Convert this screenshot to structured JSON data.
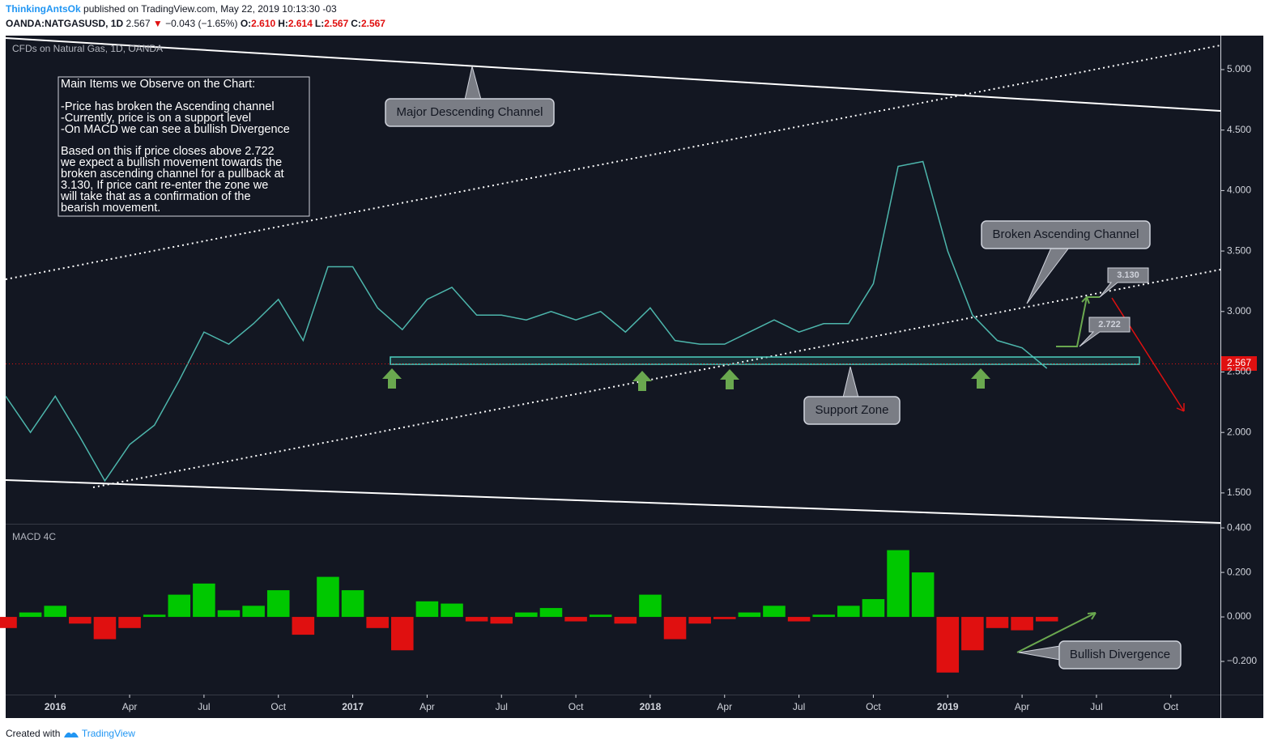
{
  "header": {
    "author": "ThinkingAntsOk",
    "published": "published on TradingView.com, May 22, 2019 10:13:30 -03",
    "symbol": "OANDA:NATGASUSD, 1D",
    "last": "2.567",
    "change": "−0.043 (−1.65%)",
    "ohlc": [
      {
        "label": "O:",
        "value": "2.610"
      },
      {
        "label": "H:",
        "value": "2.614"
      },
      {
        "label": "L:",
        "value": "2.567"
      },
      {
        "label": "C:",
        "value": "2.567"
      }
    ]
  },
  "note": {
    "heading": "Main Items we Observe on the Chart:",
    "items": [
      "-Price has broken the Ascending channel",
      "-Currently, price is on a support level",
      "-On MACD we can see a bullish Divergence"
    ],
    "paragraph": [
      "Based on this if price closes above 2.722",
      "we expect a bullish movement towards the",
      "broken ascending channel for a pullback at",
      "3.130, If price cant re-enter the zone we",
      "will take that as a confirmation of the",
      "bearish movement."
    ]
  },
  "annotations": {
    "descending": "Major Descending Channel",
    "ascending": "Broken Ascending Channel",
    "support": "Support Zone",
    "divergence": "Bullish Divergence",
    "target": "3.130",
    "trigger": "2.722"
  },
  "footer": {
    "created": "Created with",
    "brand": "TradingView"
  },
  "chart_data": [
    {
      "type": "line",
      "title": "CFDs on Natural Gas, 1D, OANDA",
      "x": [
        "2015-11",
        "2015-12",
        "2016-01",
        "2016-02",
        "2016-03",
        "2016-04",
        "2016-05",
        "2016-06",
        "2016-07",
        "2016-08",
        "2016-09",
        "2016-10",
        "2016-11",
        "2016-12",
        "2017-01",
        "2017-02",
        "2017-03",
        "2017-04",
        "2017-05",
        "2017-06",
        "2017-07",
        "2017-08",
        "2017-09",
        "2017-10",
        "2017-11",
        "2017-12",
        "2018-01",
        "2018-02",
        "2018-03",
        "2018-04",
        "2018-05",
        "2018-06",
        "2018-07",
        "2018-08",
        "2018-09",
        "2018-10",
        "2018-11",
        "2018-12",
        "2019-01",
        "2019-02",
        "2019-03",
        "2019-04",
        "2019-05"
      ],
      "series": [
        {
          "name": "NATGASUSD",
          "color": "#4db6ac",
          "values": [
            2.3,
            2.0,
            2.3,
            1.96,
            1.6,
            1.9,
            2.06,
            2.43,
            2.83,
            2.73,
            2.9,
            3.1,
            2.76,
            3.37,
            3.37,
            3.03,
            2.85,
            3.1,
            3.2,
            2.97,
            2.97,
            2.93,
            3.0,
            2.93,
            3.0,
            2.83,
            3.03,
            2.76,
            2.73,
            2.73,
            2.83,
            2.93,
            2.83,
            2.9,
            2.9,
            3.23,
            4.2,
            4.24,
            3.5,
            2.97,
            2.76,
            2.7,
            2.53
          ]
        }
      ],
      "xlim": [
        "2015-11",
        "2019-12"
      ],
      "ylim": [
        1.245,
        5.281
      ],
      "yticks": [
        {
          "value": 1.5,
          "label": "1.500"
        },
        {
          "value": 2,
          "label": "2.000"
        },
        {
          "value": 2.5,
          "label": "2.500"
        },
        {
          "value": 3,
          "label": "3.000"
        },
        {
          "value": 3.5,
          "label": "3.500"
        },
        {
          "value": 4,
          "label": "4.000"
        },
        {
          "value": 4.5,
          "label": "4.500"
        },
        {
          "value": 5,
          "label": "5.000"
        }
      ],
      "grid": false
    },
    {
      "type": "bar",
      "title": "MACD 4C",
      "x": [
        "2015-11",
        "2015-12",
        "2016-01",
        "2016-02",
        "2016-03",
        "2016-04",
        "2016-05",
        "2016-06",
        "2016-07",
        "2016-08",
        "2016-09",
        "2016-10",
        "2016-11",
        "2016-12",
        "2017-01",
        "2017-02",
        "2017-03",
        "2017-04",
        "2017-05",
        "2017-06",
        "2017-07",
        "2017-08",
        "2017-09",
        "2017-10",
        "2017-11",
        "2017-12",
        "2018-01",
        "2018-02",
        "2018-03",
        "2018-04",
        "2018-05",
        "2018-06",
        "2018-07",
        "2018-08",
        "2018-09",
        "2018-10",
        "2018-11",
        "2018-12",
        "2019-01",
        "2019-02",
        "2019-03",
        "2019-04",
        "2019-05"
      ],
      "values": [
        -0.05,
        0.02,
        0.05,
        -0.03,
        -0.1,
        -0.05,
        0.01,
        0.1,
        0.15,
        0.03,
        0.05,
        0.12,
        -0.08,
        0.18,
        0.12,
        -0.05,
        -0.15,
        0.07,
        0.06,
        -0.02,
        -0.03,
        0.02,
        0.04,
        -0.02,
        0.01,
        -0.03,
        0.1,
        -0.1,
        -0.03,
        -0.01,
        0.02,
        0.05,
        -0.02,
        0.01,
        0.05,
        0.08,
        0.3,
        0.2,
        -0.25,
        -0.15,
        -0.05,
        -0.06,
        -0.02
      ],
      "up_color": "#00c800",
      "down_color": "#e01010",
      "xlim": [
        "2015-11",
        "2019-12"
      ],
      "ylim": [
        -0.349,
        0.415
      ],
      "yticks": [
        {
          "value": -0.2,
          "label": "−0.200"
        },
        {
          "value": 0,
          "label": "0.000"
        },
        {
          "value": 0.2,
          "label": "0.200"
        },
        {
          "value": 0.4,
          "label": "0.400"
        }
      ],
      "xticks": [
        {
          "value": "2016-01",
          "label": "2016"
        },
        {
          "value": "2016-04",
          "label": "Apr"
        },
        {
          "value": "2016-07",
          "label": "Jul"
        },
        {
          "value": "2016-10",
          "label": "Oct"
        },
        {
          "value": "2017-01",
          "label": "2017"
        },
        {
          "value": "2017-04",
          "label": "Apr"
        },
        {
          "value": "2017-07",
          "label": "Jul"
        },
        {
          "value": "2017-10",
          "label": "Oct"
        },
        {
          "value": "2018-01",
          "label": "2018"
        },
        {
          "value": "2018-04",
          "label": "Apr"
        },
        {
          "value": "2018-07",
          "label": "Jul"
        },
        {
          "value": "2018-10",
          "label": "Oct"
        },
        {
          "value": "2019-01",
          "label": "2019"
        },
        {
          "value": "2019-04",
          "label": "Apr"
        },
        {
          "value": "2019-07",
          "label": "Jul"
        },
        {
          "value": "2019-10",
          "label": "Oct"
        }
      ],
      "grid": false
    }
  ]
}
